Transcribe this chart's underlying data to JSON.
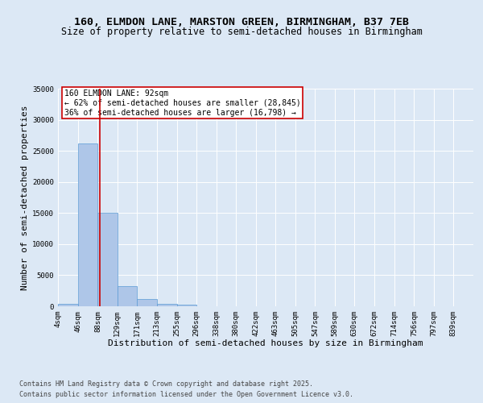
{
  "title_line1": "160, ELMDON LANE, MARSTON GREEN, BIRMINGHAM, B37 7EB",
  "title_line2": "Size of property relative to semi-detached houses in Birmingham",
  "xlabel": "Distribution of semi-detached houses by size in Birmingham",
  "ylabel": "Number of semi-detached properties",
  "annotation_title": "160 ELMDON LANE: 92sqm",
  "annotation_line1": "← 62% of semi-detached houses are smaller (28,845)",
  "annotation_line2": "36% of semi-detached houses are larger (16,798) →",
  "property_sqm": 92,
  "footer_line1": "Contains HM Land Registry data © Crown copyright and database right 2025.",
  "footer_line2": "Contains public sector information licensed under the Open Government Licence v3.0.",
  "bin_labels": [
    "4sqm",
    "46sqm",
    "88sqm",
    "129sqm",
    "171sqm",
    "213sqm",
    "255sqm",
    "296sqm",
    "338sqm",
    "380sqm",
    "422sqm",
    "463sqm",
    "505sqm",
    "547sqm",
    "589sqm",
    "630sqm",
    "672sqm",
    "714sqm",
    "756sqm",
    "797sqm",
    "839sqm"
  ],
  "bin_edges": [
    4,
    46,
    88,
    129,
    171,
    213,
    255,
    296,
    338,
    380,
    422,
    463,
    505,
    547,
    589,
    630,
    672,
    714,
    756,
    797,
    839
  ],
  "bar_values": [
    400,
    26200,
    15100,
    3250,
    1200,
    450,
    200,
    0,
    0,
    0,
    0,
    0,
    0,
    0,
    0,
    0,
    0,
    0,
    0,
    0
  ],
  "bar_color": "#aec6e8",
  "bar_edge_color": "#5b9bd5",
  "vline_color": "#cc0000",
  "vline_x": 92,
  "ylim": [
    0,
    35000
  ],
  "yticks": [
    0,
    5000,
    10000,
    15000,
    20000,
    25000,
    30000,
    35000
  ],
  "bg_color": "#dce8f5",
  "plot_bg_color": "#dce8f5",
  "grid_color": "#ffffff",
  "title_fontsize": 9.5,
  "subtitle_fontsize": 8.5,
  "axis_label_fontsize": 8,
  "tick_fontsize": 6.5,
  "annotation_fontsize": 7,
  "footer_fontsize": 6
}
